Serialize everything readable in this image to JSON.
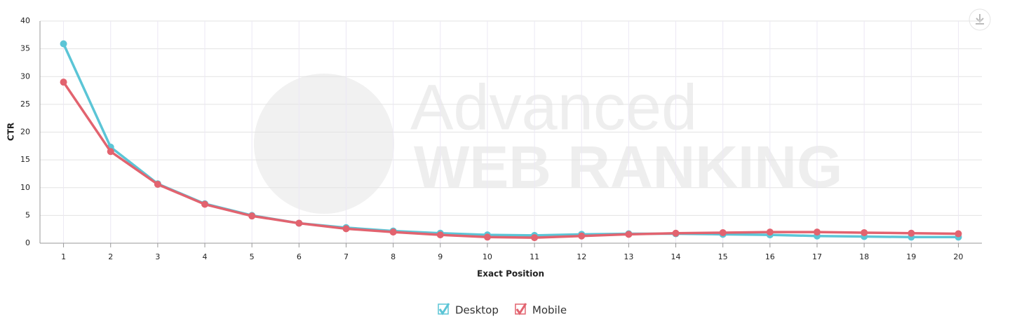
{
  "chart_data": {
    "type": "line",
    "categories": [
      "1",
      "2",
      "3",
      "4",
      "5",
      "6",
      "7",
      "8",
      "9",
      "10",
      "11",
      "12",
      "13",
      "14",
      "15",
      "16",
      "17",
      "18",
      "19",
      "20"
    ],
    "series": [
      {
        "name": "Desktop",
        "color": "#5bc5d6",
        "values": [
          35.9,
          17.3,
          10.7,
          7.1,
          5.0,
          3.6,
          2.8,
          2.2,
          1.8,
          1.5,
          1.4,
          1.6,
          1.7,
          1.7,
          1.6,
          1.5,
          1.3,
          1.2,
          1.1,
          1.1
        ]
      },
      {
        "name": "Mobile",
        "color": "#e2636f",
        "values": [
          29.0,
          16.5,
          10.6,
          7.0,
          4.9,
          3.6,
          2.6,
          2.0,
          1.5,
          1.1,
          1.0,
          1.3,
          1.6,
          1.8,
          1.9,
          2.0,
          2.0,
          1.9,
          1.8,
          1.7
        ]
      }
    ],
    "ylim": [
      0,
      40
    ],
    "yticks": [
      0,
      5,
      10,
      15,
      20,
      25,
      30,
      35,
      40
    ],
    "grid": true,
    "y_label": "CTR",
    "x_label": "Exact Position",
    "watermark": {
      "line1": "Advanced",
      "line2": "WEB RANKING"
    },
    "legend": "bottom"
  }
}
